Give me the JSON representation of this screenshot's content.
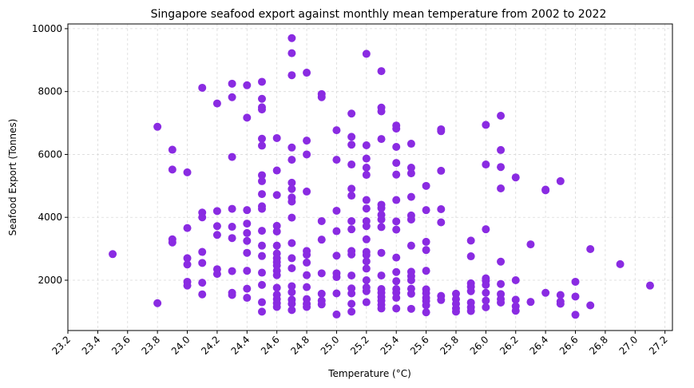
{
  "chart_data": {
    "type": "scatter",
    "title": "Singapore seafood export against monthly mean temperature from 2002 to 2022",
    "xlabel": "Temperature (°C)",
    "ylabel": "Seafood Export (Tonnes)",
    "xlim": [
      23.2,
      27.25
    ],
    "ylim": [
      400,
      10150
    ],
    "xticks": [
      "23.2",
      "23.4",
      "23.6",
      "23.8",
      "24.0",
      "24.2",
      "24.4",
      "24.6",
      "24.8",
      "25.0",
      "25.2",
      "25.4",
      "25.6",
      "25.8",
      "26.0",
      "26.2",
      "26.4",
      "26.6",
      "26.8",
      "27.0",
      "27.2"
    ],
    "yticks": [
      "2000",
      "4000",
      "6000",
      "8000",
      "10000"
    ],
    "grid": true,
    "marker_color": "#8a2be2",
    "points": [
      [
        23.5,
        2830
      ],
      [
        23.8,
        6880
      ],
      [
        23.8,
        1270
      ],
      [
        23.9,
        6150
      ],
      [
        23.9,
        5520
      ],
      [
        23.9,
        3300
      ],
      [
        23.9,
        3200
      ],
      [
        24.0,
        5430
      ],
      [
        24.0,
        3660
      ],
      [
        24.0,
        2700
      ],
      [
        24.0,
        2500
      ],
      [
        24.0,
        1950
      ],
      [
        24.0,
        1830
      ],
      [
        24.1,
        8120
      ],
      [
        24.1,
        4150
      ],
      [
        24.1,
        4000
      ],
      [
        24.1,
        2900
      ],
      [
        24.1,
        2550
      ],
      [
        24.1,
        1920
      ],
      [
        24.1,
        1550
      ],
      [
        24.2,
        7620
      ],
      [
        24.2,
        4200
      ],
      [
        24.2,
        3720
      ],
      [
        24.2,
        3440
      ],
      [
        24.2,
        2350
      ],
      [
        24.2,
        2200
      ],
      [
        24.3,
        8250
      ],
      [
        24.3,
        7820
      ],
      [
        24.3,
        5920
      ],
      [
        24.3,
        4270
      ],
      [
        24.3,
        3700
      ],
      [
        24.3,
        3340
      ],
      [
        24.3,
        2290
      ],
      [
        24.3,
        1600
      ],
      [
        24.3,
        1530
      ],
      [
        24.4,
        8200
      ],
      [
        24.4,
        7170
      ],
      [
        24.4,
        4230
      ],
      [
        24.4,
        3800
      ],
      [
        24.4,
        3500
      ],
      [
        24.4,
        3250
      ],
      [
        24.4,
        2870
      ],
      [
        24.4,
        2300
      ],
      [
        24.4,
        1730
      ],
      [
        24.4,
        1440
      ],
      [
        24.5,
        8310
      ],
      [
        24.5,
        7770
      ],
      [
        24.5,
        7500
      ],
      [
        24.5,
        7430
      ],
      [
        24.5,
        6500
      ],
      [
        24.5,
        6280
      ],
      [
        24.5,
        5340
      ],
      [
        24.5,
        5150
      ],
      [
        24.5,
        4740
      ],
      [
        24.5,
        4350
      ],
      [
        24.5,
        4270
      ],
      [
        24.5,
        3570
      ],
      [
        24.5,
        3100
      ],
      [
        24.5,
        2770
      ],
      [
        24.5,
        2240
      ],
      [
        24.5,
        1850
      ],
      [
        24.5,
        1300
      ],
      [
        24.5,
        1000
      ],
      [
        24.6,
        6520
      ],
      [
        24.6,
        5490
      ],
      [
        24.6,
        4710
      ],
      [
        24.6,
        3730
      ],
      [
        24.6,
        3550
      ],
      [
        24.6,
        3100
      ],
      [
        24.6,
        2850
      ],
      [
        24.6,
        2700
      ],
      [
        24.6,
        2580
      ],
      [
        24.6,
        2470
      ],
      [
        24.6,
        2300
      ],
      [
        24.6,
        2160
      ],
      [
        24.6,
        1760
      ],
      [
        24.6,
        1540
      ],
      [
        24.6,
        1400
      ],
      [
        24.6,
        1270
      ],
      [
        24.6,
        1150
      ],
      [
        24.7,
        9700
      ],
      [
        24.7,
        9220
      ],
      [
        24.7,
        8520
      ],
      [
        24.7,
        6220
      ],
      [
        24.7,
        5830
      ],
      [
        24.7,
        5100
      ],
      [
        24.7,
        4900
      ],
      [
        24.7,
        4630
      ],
      [
        24.7,
        4500
      ],
      [
        24.7,
        3990
      ],
      [
        24.7,
        3180
      ],
      [
        24.7,
        2700
      ],
      [
        24.7,
        2380
      ],
      [
        24.7,
        1810
      ],
      [
        24.7,
        1620
      ],
      [
        24.7,
        1380
      ],
      [
        24.7,
        1250
      ],
      [
        24.7,
        1050
      ],
      [
        24.8,
        8600
      ],
      [
        24.8,
        6440
      ],
      [
        24.8,
        6000
      ],
      [
        24.8,
        4820
      ],
      [
        24.8,
        2930
      ],
      [
        24.8,
        2810
      ],
      [
        24.8,
        2560
      ],
      [
        24.8,
        2160
      ],
      [
        24.8,
        1780
      ],
      [
        24.8,
        1400
      ],
      [
        24.8,
        1250
      ],
      [
        24.8,
        1150
      ],
      [
        24.9,
        7920
      ],
      [
        24.9,
        7820
      ],
      [
        24.9,
        3880
      ],
      [
        24.9,
        3290
      ],
      [
        24.9,
        2220
      ],
      [
        24.9,
        1570
      ],
      [
        24.9,
        1350
      ],
      [
        24.9,
        1230
      ],
      [
        25.0,
        6770
      ],
      [
        25.0,
        5830
      ],
      [
        25.0,
        4210
      ],
      [
        25.0,
        3560
      ],
      [
        25.0,
        2780
      ],
      [
        25.0,
        2220
      ],
      [
        25.0,
        2100
      ],
      [
        25.0,
        1580
      ],
      [
        25.0,
        910
      ],
      [
        25.1,
        7300
      ],
      [
        25.1,
        6560
      ],
      [
        25.1,
        6310
      ],
      [
        25.1,
        5680
      ],
      [
        25.1,
        4910
      ],
      [
        25.1,
        4690
      ],
      [
        25.1,
        3880
      ],
      [
        25.1,
        3620
      ],
      [
        25.1,
        2930
      ],
      [
        25.1,
        2820
      ],
      [
        25.1,
        2150
      ],
      [
        25.1,
        1740
      ],
      [
        25.1,
        1580
      ],
      [
        25.1,
        1250
      ],
      [
        25.1,
        1000
      ],
      [
        25.2,
        9200
      ],
      [
        25.2,
        6290
      ],
      [
        25.2,
        5870
      ],
      [
        25.2,
        5580
      ],
      [
        25.2,
        5350
      ],
      [
        25.2,
        4550
      ],
      [
        25.2,
        4280
      ],
      [
        25.2,
        3880
      ],
      [
        25.2,
        3720
      ],
      [
        25.2,
        3300
      ],
      [
        25.2,
        2900
      ],
      [
        25.2,
        2800
      ],
      [
        25.2,
        2600
      ],
      [
        25.2,
        2370
      ],
      [
        25.2,
        2000
      ],
      [
        25.2,
        1770
      ],
      [
        25.2,
        1650
      ],
      [
        25.2,
        1300
      ],
      [
        25.3,
        8650
      ],
      [
        25.3,
        7490
      ],
      [
        25.3,
        7370
      ],
      [
        25.3,
        6490
      ],
      [
        25.3,
        4400
      ],
      [
        25.3,
        4290
      ],
      [
        25.3,
        4080
      ],
      [
        25.3,
        3930
      ],
      [
        25.3,
        3690
      ],
      [
        25.3,
        2870
      ],
      [
        25.3,
        2150
      ],
      [
        25.3,
        1720
      ],
      [
        25.3,
        1600
      ],
      [
        25.3,
        1470
      ],
      [
        25.3,
        1350
      ],
      [
        25.3,
        1220
      ],
      [
        25.3,
        1100
      ],
      [
        25.4,
        6920
      ],
      [
        25.4,
        6820
      ],
      [
        25.4,
        6240
      ],
      [
        25.4,
        5730
      ],
      [
        25.4,
        5360
      ],
      [
        25.4,
        4550
      ],
      [
        25.4,
        3870
      ],
      [
        25.4,
        3610
      ],
      [
        25.4,
        2720
      ],
      [
        25.4,
        2260
      ],
      [
        25.4,
        1970
      ],
      [
        25.4,
        1720
      ],
      [
        25.4,
        1600
      ],
      [
        25.4,
        1440
      ],
      [
        25.4,
        1100
      ],
      [
        25.5,
        6340
      ],
      [
        25.5,
        5580
      ],
      [
        25.5,
        5400
      ],
      [
        25.5,
        4650
      ],
      [
        25.5,
        4060
      ],
      [
        25.5,
        3930
      ],
      [
        25.5,
        3100
      ],
      [
        25.5,
        2270
      ],
      [
        25.5,
        2130
      ],
      [
        25.5,
        2000
      ],
      [
        25.5,
        1730
      ],
      [
        25.5,
        1570
      ],
      [
        25.5,
        1090
      ],
      [
        25.6,
        5000
      ],
      [
        25.6,
        4230
      ],
      [
        25.6,
        3220
      ],
      [
        25.6,
        2960
      ],
      [
        25.6,
        2300
      ],
      [
        25.6,
        1710
      ],
      [
        25.6,
        1590
      ],
      [
        25.6,
        1440
      ],
      [
        25.6,
        1340
      ],
      [
        25.6,
        1200
      ],
      [
        25.6,
        980
      ],
      [
        25.7,
        6800
      ],
      [
        25.7,
        6740
      ],
      [
        25.7,
        5480
      ],
      [
        25.7,
        4260
      ],
      [
        25.7,
        3840
      ],
      [
        25.7,
        1500
      ],
      [
        25.7,
        1370
      ],
      [
        25.8,
        1570
      ],
      [
        25.8,
        1400
      ],
      [
        25.8,
        1250
      ],
      [
        25.8,
        1100
      ],
      [
        25.8,
        1000
      ],
      [
        25.9,
        3260
      ],
      [
        25.9,
        2760
      ],
      [
        25.9,
        1900
      ],
      [
        25.9,
        1790
      ],
      [
        25.9,
        1650
      ],
      [
        25.9,
        1290
      ],
      [
        25.9,
        1140
      ],
      [
        25.9,
        1020
      ],
      [
        26.0,
        6940
      ],
      [
        26.0,
        5680
      ],
      [
        26.0,
        3620
      ],
      [
        26.0,
        2060
      ],
      [
        26.0,
        1980
      ],
      [
        26.0,
        1850
      ],
      [
        26.0,
        1600
      ],
      [
        26.0,
        1350
      ],
      [
        26.0,
        1140
      ],
      [
        26.1,
        7230
      ],
      [
        26.1,
        6140
      ],
      [
        26.1,
        5600
      ],
      [
        26.1,
        4920
      ],
      [
        26.1,
        2590
      ],
      [
        26.1,
        1880
      ],
      [
        26.1,
        1560
      ],
      [
        26.1,
        1400
      ],
      [
        26.1,
        1290
      ],
      [
        26.2,
        5270
      ],
      [
        26.2,
        2000
      ],
      [
        26.2,
        1380
      ],
      [
        26.2,
        1170
      ],
      [
        26.2,
        1030
      ],
      [
        26.3,
        3140
      ],
      [
        26.3,
        1310
      ],
      [
        26.4,
        4880
      ],
      [
        26.4,
        4860
      ],
      [
        26.4,
        1600
      ],
      [
        26.5,
        5150
      ],
      [
        26.5,
        1530
      ],
      [
        26.5,
        1320
      ],
      [
        26.5,
        1250
      ],
      [
        26.6,
        1950
      ],
      [
        26.6,
        1480
      ],
      [
        26.6,
        900
      ],
      [
        26.7,
        2990
      ],
      [
        26.7,
        1200
      ],
      [
        26.9,
        2510
      ],
      [
        27.1,
        1830
      ]
    ]
  }
}
